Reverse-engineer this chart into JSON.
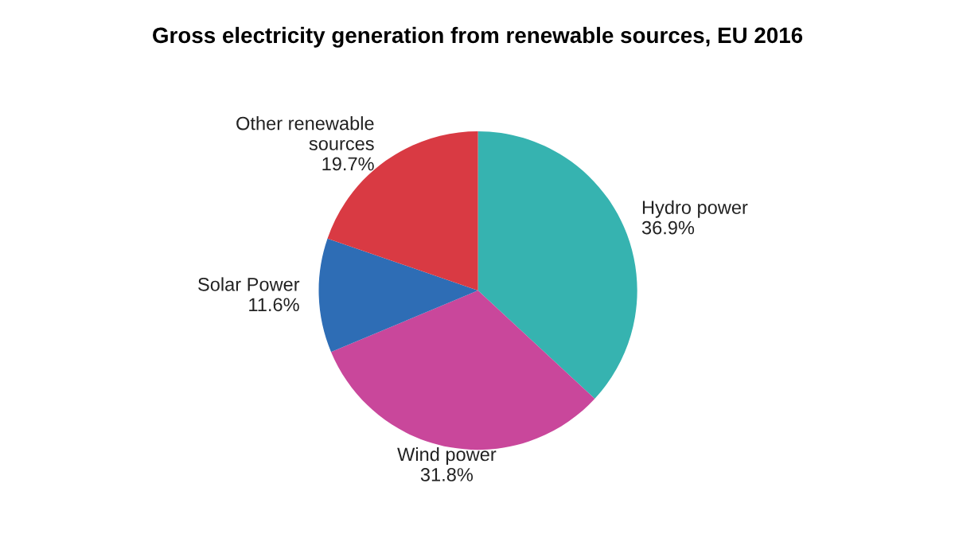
{
  "chart_data": {
    "type": "pie",
    "title": "Gross electricity generation from renewable sources, EU 2016",
    "categories": [
      "Hydro power",
      "Wind power",
      "Solar Power",
      "Other renewable\nsources"
    ],
    "values": [
      36.9,
      31.8,
      11.6,
      19.7
    ],
    "value_labels": [
      "36.9%",
      "31.8%",
      "11.6%",
      "19.7%"
    ],
    "colors": [
      "#36b3b0",
      "#c9479b",
      "#2e6db5",
      "#d93a43"
    ],
    "legend": false
  }
}
